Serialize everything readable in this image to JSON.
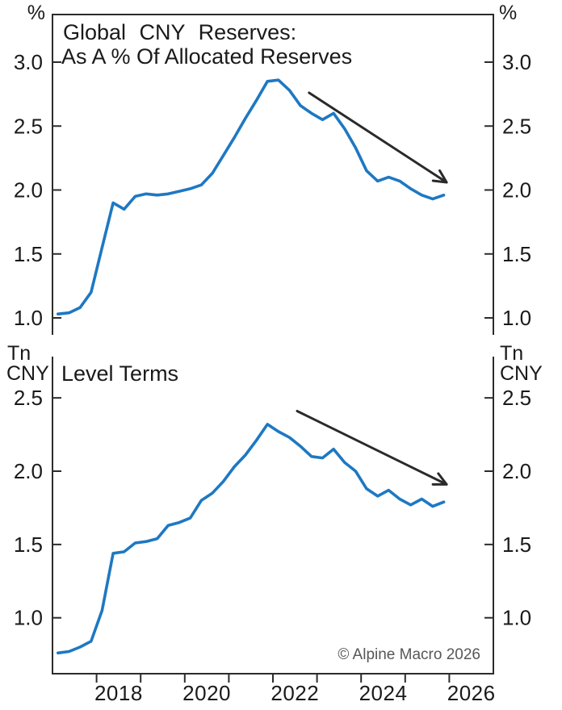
{
  "figure": {
    "copyright": "© Alpine Macro 2026",
    "background": "#ffffff",
    "axis_color": "#2b2b2b",
    "text_color": "#1a1a1a"
  },
  "chart_data": {
    "type": "line",
    "frequency": "quarterly",
    "x_categories": [
      "2017 Q1",
      "2017 Q2",
      "2017 Q3",
      "2017 Q4",
      "2018 Q1",
      "2018 Q2",
      "2018 Q3",
      "2018 Q4",
      "2019 Q1",
      "2019 Q2",
      "2019 Q3",
      "2019 Q4",
      "2020 Q1",
      "2020 Q2",
      "2020 Q3",
      "2020 Q4",
      "2021 Q1",
      "2021 Q2",
      "2021 Q3",
      "2021 Q4",
      "2022 Q1",
      "2022 Q2",
      "2022 Q3",
      "2022 Q4",
      "2023 Q1",
      "2023 Q2",
      "2023 Q3",
      "2023 Q4",
      "2024 Q1",
      "2024 Q2",
      "2024 Q3",
      "2024 Q4",
      "2025 Q1",
      "2025 Q2",
      "2025 Q3",
      "2025 Q4"
    ],
    "x_axis": {
      "range_years": [
        2017,
        2027
      ],
      "tick_years": [
        2018,
        2019,
        2020,
        2021,
        2022,
        2023,
        2024,
        2025,
        2026
      ],
      "year_labels": [
        "2018",
        "2020",
        "2022",
        "2024",
        "2026"
      ],
      "grid": false
    },
    "panels": [
      {
        "panel": "top",
        "title_lines": [
          "Global CNY Reserves:",
          "As A % Of Allocated Reserves"
        ],
        "unit_lines": [
          "%"
        ],
        "ylabel": "Percent of allocated reserves",
        "yticks": [
          "1.0",
          "1.5",
          "2.0",
          "2.5",
          "3.0"
        ],
        "ylim": [
          0.87,
          3.37
        ],
        "line_color": "#1e78c2",
        "series": [
          {
            "name": "Global CNY reserves as % of allocated reserves",
            "values": [
              1.03,
              1.04,
              1.08,
              1.2,
              1.55,
              1.9,
              1.85,
              1.95,
              1.97,
              1.96,
              1.97,
              1.99,
              2.01,
              2.04,
              2.13,
              2.27,
              2.41,
              2.56,
              2.7,
              2.85,
              2.86,
              2.78,
              2.66,
              2.6,
              2.55,
              2.6,
              2.48,
              2.33,
              2.15,
              2.07,
              2.1,
              2.07,
              2.01,
              1.96,
              1.93,
              1.96
            ]
          }
        ],
        "arrow": {
          "from": {
            "year": 2022.82,
            "value": 2.76
          },
          "to": {
            "year": 2025.94,
            "value": 2.06
          }
        },
        "arrow_color": "#2a2a2a"
      },
      {
        "panel": "bottom",
        "title_lines": [
          "Level Terms"
        ],
        "unit_lines": [
          "Tn",
          "CNY"
        ],
        "ylabel": "Trillion CNY",
        "yticks": [
          "1.0",
          "1.5",
          "2.0",
          "2.5"
        ],
        "ylim": [
          0.62,
          2.78
        ],
        "line_color": "#1e78c2",
        "series": [
          {
            "name": "Global CNY reserves, level terms (Tn CNY)",
            "values": [
              0.76,
              0.77,
              0.8,
              0.84,
              1.05,
              1.44,
              1.45,
              1.51,
              1.52,
              1.54,
              1.63,
              1.65,
              1.68,
              1.8,
              1.85,
              1.93,
              2.03,
              2.11,
              2.21,
              2.32,
              2.27,
              2.23,
              2.17,
              2.1,
              2.09,
              2.15,
              2.06,
              2.0,
              1.88,
              1.83,
              1.87,
              1.81,
              1.77,
              1.81,
              1.76,
              1.79
            ]
          }
        ],
        "arrow": {
          "from": {
            "year": 2022.55,
            "value": 2.41
          },
          "to": {
            "year": 2025.94,
            "value": 1.91
          }
        },
        "arrow_color": "#2a2a2a"
      }
    ]
  }
}
